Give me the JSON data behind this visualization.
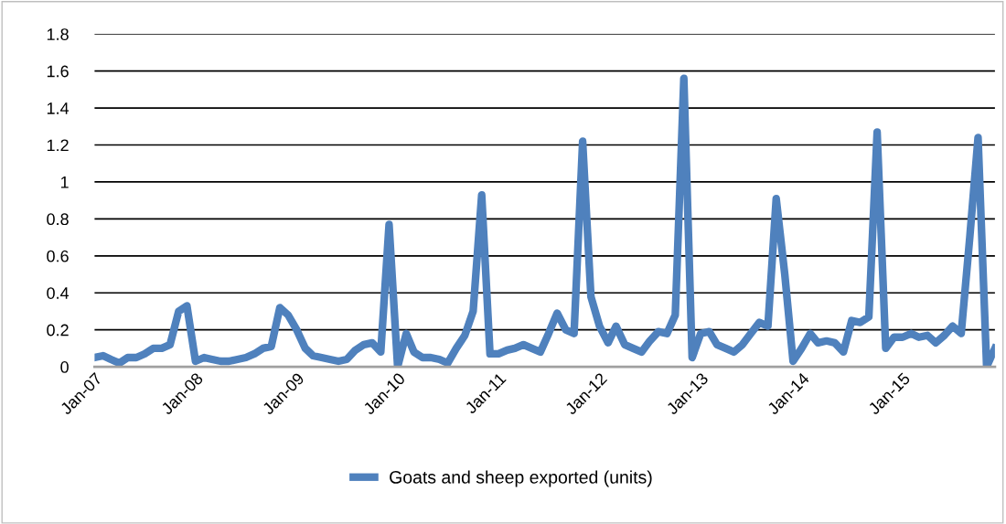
{
  "chart_data": {
    "type": "line",
    "x": [
      "2007-01",
      "2007-02",
      "2007-03",
      "2007-04",
      "2007-05",
      "2007-06",
      "2007-07",
      "2007-08",
      "2007-09",
      "2007-10",
      "2007-11",
      "2007-12",
      "2008-01",
      "2008-02",
      "2008-03",
      "2008-04",
      "2008-05",
      "2008-06",
      "2008-07",
      "2008-08",
      "2008-09",
      "2008-10",
      "2008-11",
      "2008-12",
      "2009-01",
      "2009-02",
      "2009-03",
      "2009-04",
      "2009-05",
      "2009-06",
      "2009-07",
      "2009-08",
      "2009-09",
      "2009-10",
      "2009-11",
      "2009-12",
      "2010-01",
      "2010-02",
      "2010-03",
      "2010-04",
      "2010-05",
      "2010-06",
      "2010-07",
      "2010-08",
      "2010-09",
      "2010-10",
      "2010-11",
      "2010-12",
      "2011-01",
      "2011-02",
      "2011-03",
      "2011-04",
      "2011-05",
      "2011-06",
      "2011-07",
      "2011-08",
      "2011-09",
      "2011-10",
      "2011-11",
      "2011-12",
      "2012-01",
      "2012-02",
      "2012-03",
      "2012-04",
      "2012-05",
      "2012-06",
      "2012-07",
      "2012-08",
      "2012-09",
      "2012-10",
      "2012-11",
      "2012-12",
      "2013-01",
      "2013-02",
      "2013-03",
      "2013-04",
      "2013-05",
      "2013-06",
      "2013-07",
      "2013-08",
      "2013-09",
      "2013-10",
      "2013-11",
      "2013-12",
      "2014-01",
      "2014-02",
      "2014-03",
      "2014-04",
      "2014-05",
      "2014-06",
      "2014-07",
      "2014-08",
      "2014-09",
      "2014-10",
      "2014-11",
      "2014-12",
      "2015-01",
      "2015-02",
      "2015-03",
      "2015-04",
      "2015-05",
      "2015-06",
      "2015-07",
      "2015-08",
      "2015-09",
      "2015-10",
      "2015-11",
      "2015-12"
    ],
    "series": [
      {
        "name": "Goats and sheep exported (units)",
        "color": "#4f81bd",
        "values": [
          0.05,
          0.06,
          0.04,
          0.02,
          0.05,
          0.05,
          0.07,
          0.1,
          0.1,
          0.12,
          0.3,
          0.33,
          0.03,
          0.05,
          0.04,
          0.03,
          0.03,
          0.04,
          0.05,
          0.07,
          0.1,
          0.11,
          0.32,
          0.28,
          0.2,
          0.1,
          0.06,
          0.05,
          0.04,
          0.03,
          0.04,
          0.09,
          0.12,
          0.13,
          0.08,
          0.77,
          0.0,
          0.18,
          0.08,
          0.05,
          0.05,
          0.04,
          0.02,
          0.1,
          0.17,
          0.3,
          0.93,
          0.07,
          0.07,
          0.09,
          0.1,
          0.12,
          0.1,
          0.08,
          0.18,
          0.29,
          0.2,
          0.18,
          1.22,
          0.38,
          0.22,
          0.13,
          0.22,
          0.12,
          0.1,
          0.08,
          0.14,
          0.19,
          0.18,
          0.28,
          1.56,
          0.05,
          0.18,
          0.19,
          0.12,
          0.1,
          0.08,
          0.12,
          0.18,
          0.24,
          0.22,
          0.91,
          0.5,
          0.03,
          0.1,
          0.18,
          0.13,
          0.14,
          0.13,
          0.08,
          0.25,
          0.24,
          0.27,
          1.27,
          0.1,
          0.16,
          0.16,
          0.18,
          0.16,
          0.17,
          0.13,
          0.17,
          0.22,
          0.18,
          0.7,
          1.24,
          0.0,
          0.1
        ]
      }
    ],
    "xlim": [
      "2007-01",
      "2015-12"
    ],
    "xticks": [
      {
        "value": "2007-01",
        "label": "Jan-07"
      },
      {
        "value": "2008-01",
        "label": "Jan-08"
      },
      {
        "value": "2009-01",
        "label": "Jan-09"
      },
      {
        "value": "2010-01",
        "label": "Jan-10"
      },
      {
        "value": "2011-01",
        "label": "Jan-11"
      },
      {
        "value": "2012-01",
        "label": "Jan-12"
      },
      {
        "value": "2013-01",
        "label": "Jan-13"
      },
      {
        "value": "2014-01",
        "label": "Jan-14"
      },
      {
        "value": "2015-01",
        "label": "Jan-15"
      }
    ],
    "ylim": [
      0,
      1.8
    ],
    "yticks": [
      0,
      0.2,
      0.4,
      0.6,
      0.8,
      1,
      1.2,
      1.4,
      1.6,
      1.8
    ],
    "grid": "y",
    "legend": "bottom",
    "marker": "none",
    "line_style": "solid"
  }
}
